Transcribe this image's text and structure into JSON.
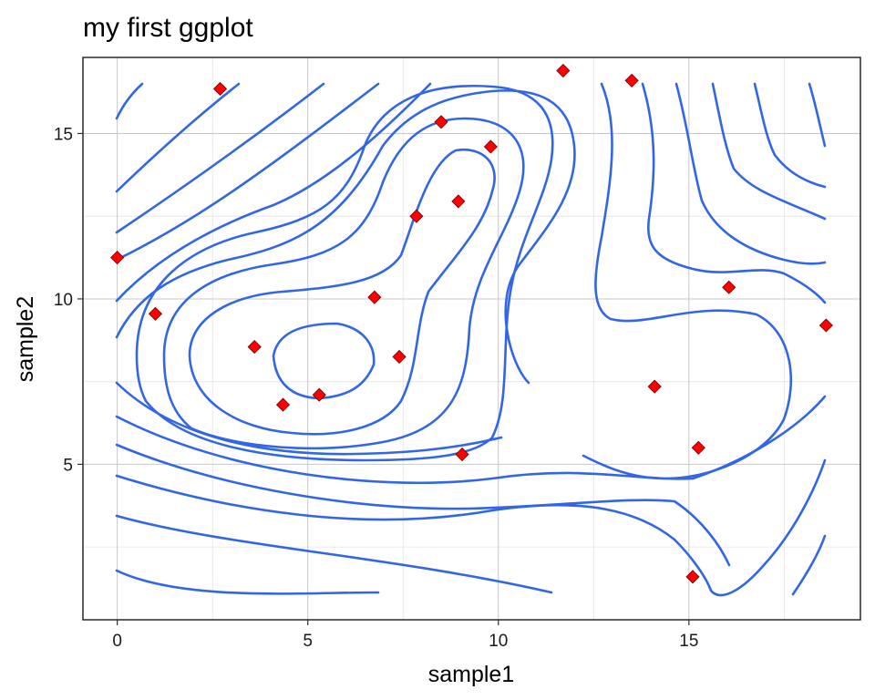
{
  "chart_data": {
    "type": "scatter",
    "title": "my first ggplot",
    "xlabel": "sample1",
    "ylabel": "sample2",
    "xlim": [
      -0.9,
      19.5
    ],
    "ylim": [
      0.3,
      17.3
    ],
    "x_major_ticks": [
      0,
      5,
      10,
      15
    ],
    "y_major_ticks": [
      5,
      10,
      15
    ],
    "x_minor_ticks": [
      2.5,
      7.5,
      12.5,
      17.5
    ],
    "y_minor_ticks": [
      2.5,
      7.5,
      12.5
    ],
    "x_tick_labels": [
      "0",
      "5",
      "10",
      "15"
    ],
    "y_tick_labels": [
      "5",
      "10",
      "15"
    ],
    "grid": true,
    "legend": "none",
    "colors": {
      "contour": "#3366e6",
      "point_fill": "#ff0000",
      "point_outline": "#6b0000",
      "grid_major": "#c8c8c8",
      "grid_minor": "#e4e4e4"
    },
    "points": [
      {
        "x": 0.0,
        "y": 11.25
      },
      {
        "x": 1.0,
        "y": 9.55
      },
      {
        "x": 2.7,
        "y": 16.35
      },
      {
        "x": 3.6,
        "y": 8.55
      },
      {
        "x": 4.35,
        "y": 6.8
      },
      {
        "x": 5.3,
        "y": 7.1
      },
      {
        "x": 6.75,
        "y": 10.05
      },
      {
        "x": 7.4,
        "y": 8.25
      },
      {
        "x": 7.85,
        "y": 12.5
      },
      {
        "x": 8.5,
        "y": 15.35
      },
      {
        "x": 8.95,
        "y": 12.95
      },
      {
        "x": 9.05,
        "y": 5.3
      },
      {
        "x": 9.8,
        "y": 14.6
      },
      {
        "x": 11.7,
        "y": 16.9
      },
      {
        "x": 13.5,
        "y": 16.6
      },
      {
        "x": 14.1,
        "y": 7.35
      },
      {
        "x": 15.1,
        "y": 1.6
      },
      {
        "x": 15.25,
        "y": 5.5
      },
      {
        "x": 16.05,
        "y": 10.35
      },
      {
        "x": 18.6,
        "y": 9.2
      }
    ],
    "contours": [
      [
        [
          4.0,
          8.6
        ],
        [
          4.4,
          9.2
        ],
        [
          5.2,
          9.6
        ],
        [
          6.2,
          9.6
        ],
        [
          6.8,
          9.2
        ],
        [
          6.9,
          8.3
        ],
        [
          6.5,
          7.8
        ],
        [
          5.8,
          7.5
        ],
        [
          4.9,
          7.6
        ],
        [
          4.2,
          8.0
        ],
        [
          4.0,
          8.6
        ]
      ],
      [
        [
          7.5,
          12.0
        ],
        [
          7.4,
          11.0
        ],
        [
          7.2,
          10.3
        ],
        [
          6.6,
          9.9
        ],
        [
          5.2,
          10.2
        ],
        [
          3.8,
          9.8
        ],
        [
          3.0,
          8.6
        ],
        [
          3.6,
          7.2
        ],
        [
          5.4,
          6.6
        ],
        [
          7.4,
          6.9
        ],
        [
          7.8,
          8.2
        ],
        [
          7.9,
          10.0
        ],
        [
          8.2,
          12.2
        ],
        [
          8.8,
          13.4
        ],
        [
          9.6,
          14.6
        ],
        [
          10.0,
          14.2
        ],
        [
          9.9,
          13.0
        ],
        [
          9.2,
          11.2
        ],
        [
          8.8,
          9.6
        ],
        [
          8.6,
          8.4
        ],
        [
          8.1,
          7.1
        ],
        [
          6.6,
          6.1
        ],
        [
          4.2,
          6.0
        ],
        [
          2.5,
          7.2
        ],
        [
          1.9,
          8.6
        ],
        [
          2.4,
          10.2
        ],
        [
          3.9,
          11.1
        ],
        [
          5.5,
          11.3
        ],
        [
          6.4,
          11.6
        ],
        [
          7.0,
          13.2
        ],
        [
          7.8,
          14.7
        ],
        [
          9.2,
          15.1
        ],
        [
          10.6,
          14.7
        ],
        [
          10.9,
          13.4
        ],
        [
          10.4,
          11.8
        ],
        [
          9.8,
          10.4
        ],
        [
          9.7,
          8.2
        ],
        [
          9.1,
          6.6
        ],
        [
          7.0,
          5.6
        ],
        [
          3.8,
          5.5
        ],
        [
          1.8,
          6.6
        ],
        [
          1.1,
          8.6
        ],
        [
          1.6,
          10.6
        ],
        [
          3.0,
          11.7
        ],
        [
          4.8,
          12.1
        ],
        [
          5.9,
          12.6
        ],
        [
          6.5,
          13.8
        ],
        [
          7.3,
          15.4
        ],
        [
          8.6,
          16.0
        ],
        [
          10.4,
          16.0
        ],
        [
          11.3,
          15.2
        ],
        [
          11.4,
          13.8
        ],
        [
          11.1,
          12.2
        ],
        [
          10.6,
          10.5
        ],
        [
          10.5,
          8.6
        ],
        [
          10.2,
          7.0
        ],
        [
          11.0,
          6.2
        ],
        [
          12.8,
          6.3
        ],
        [
          15.5,
          6.5
        ],
        [
          17.0,
          7.0
        ],
        [
          17.5,
          8.5
        ],
        [
          17.2,
          9.6
        ],
        [
          16.0,
          10.0
        ],
        [
          14.0,
          9.8
        ],
        [
          12.6,
          9.7
        ],
        [
          12.3,
          10.5
        ],
        [
          12.7,
          12.0
        ],
        [
          13.0,
          13.8
        ],
        [
          12.8,
          15.4
        ],
        [
          12.6,
          16.9
        ]
      ]
    ]
  }
}
